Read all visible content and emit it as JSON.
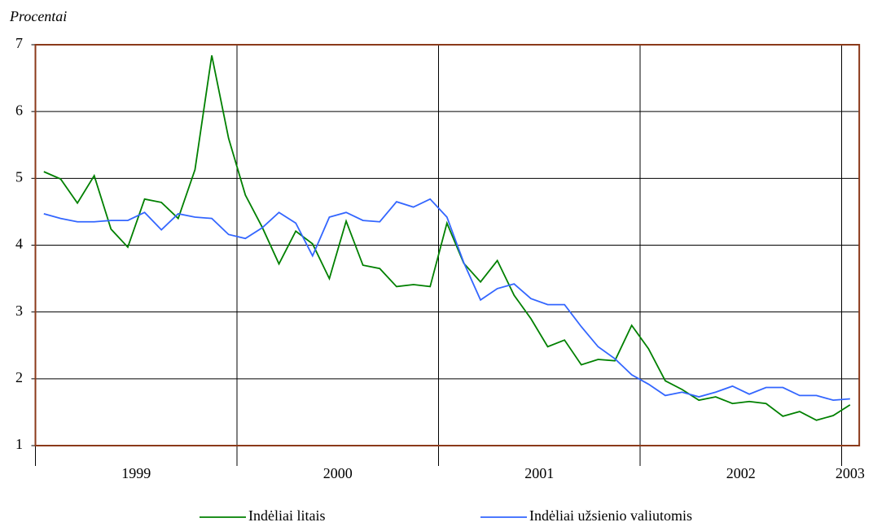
{
  "chart_data": {
    "type": "line",
    "y_axis_label": "Procentai",
    "x_labels": [
      "1999",
      "2000",
      "2001",
      "2002",
      "2003"
    ],
    "ylim": [
      1,
      7
    ],
    "yticks": [
      1,
      2,
      3,
      4,
      5,
      6,
      7
    ],
    "grid": true,
    "legend": "bottom",
    "series": [
      {
        "name": "Indėliai litais",
        "color": "#008000",
        "values": [
          5.1,
          4.99,
          4.63,
          5.04,
          4.24,
          3.97,
          4.69,
          4.64,
          4.4,
          5.13,
          6.84,
          5.6,
          4.75,
          4.27,
          3.72,
          4.21,
          4.02,
          3.5,
          4.36,
          3.7,
          3.65,
          3.38,
          3.41,
          3.38,
          4.33,
          3.73,
          3.45,
          3.77,
          3.25,
          2.9,
          2.48,
          2.58,
          2.21,
          2.29,
          2.27,
          2.8,
          2.45,
          1.97,
          1.84,
          1.68,
          1.73,
          1.63,
          1.66,
          1.63,
          1.44,
          1.51,
          1.38,
          1.45,
          1.61
        ]
      },
      {
        "name": "Indėliai užsienio valiutomis",
        "color": "#3366ff",
        "values": [
          4.47,
          4.4,
          4.35,
          4.35,
          4.37,
          4.37,
          4.49,
          4.23,
          4.47,
          4.42,
          4.4,
          4.16,
          4.1,
          4.26,
          4.49,
          4.33,
          3.84,
          4.42,
          4.49,
          4.37,
          4.35,
          4.65,
          4.57,
          4.69,
          4.42,
          3.74,
          3.18,
          3.35,
          3.42,
          3.2,
          3.11,
          3.11,
          2.78,
          2.48,
          2.3,
          2.06,
          1.92,
          1.75,
          1.8,
          1.73,
          1.8,
          1.89,
          1.77,
          1.87,
          1.87,
          1.75,
          1.75,
          1.68,
          1.7
        ]
      }
    ]
  }
}
